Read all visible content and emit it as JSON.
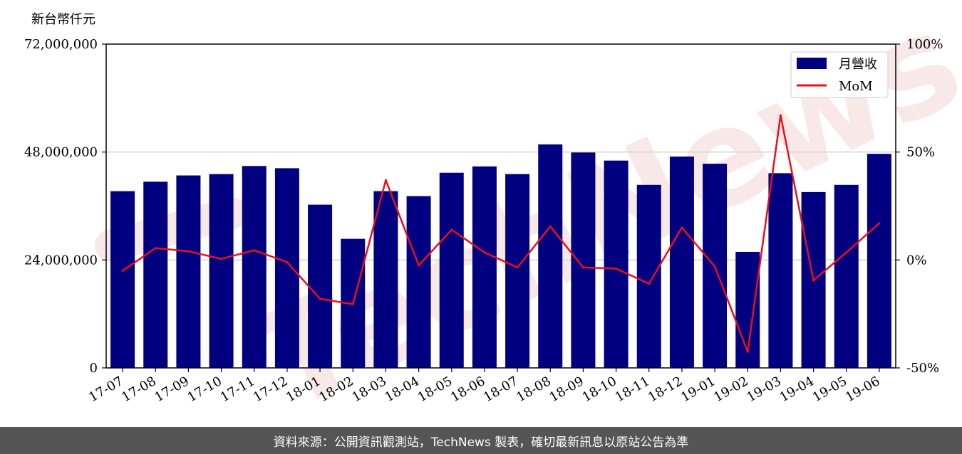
{
  "chart_data": {
    "type": "bar",
    "ylabel": "新台幣仟元",
    "categories": [
      "17-07",
      "17-08",
      "17-09",
      "17-10",
      "17-11",
      "17-12",
      "18-01",
      "18-02",
      "18-03",
      "18-04",
      "18-05",
      "18-06",
      "18-07",
      "18-08",
      "18-09",
      "18-10",
      "18-11",
      "18-12",
      "19-01",
      "19-02",
      "19-03",
      "19-04",
      "19-05",
      "19-06"
    ],
    "series": [
      {
        "name": "月營收",
        "axis": "left",
        "type": "bar",
        "color": "#000080",
        "values": [
          39300000,
          41400000,
          42800000,
          43100000,
          44900000,
          44400000,
          36300000,
          28700000,
          39300000,
          38200000,
          43400000,
          44800000,
          43100000,
          49700000,
          47900000,
          46100000,
          40700000,
          47000000,
          45400000,
          25800000,
          43300000,
          39100000,
          40700000,
          47600000
        ]
      },
      {
        "name": "MoM",
        "axis": "right",
        "type": "line",
        "color": "#e8101a",
        "values": [
          -5,
          5.5,
          4,
          0.5,
          4.5,
          -1,
          -18,
          -20.5,
          37,
          -2.5,
          14,
          3.5,
          -3.5,
          15.5,
          -3.5,
          -4,
          -11,
          15,
          -3,
          -42.5,
          67,
          -9.5,
          3.5,
          17
        ]
      }
    ],
    "ylim": [
      0,
      72000000
    ],
    "yticks": [
      "0",
      "24,000,000",
      "48,000,000",
      "72,000,000"
    ],
    "y2lim": [
      -50,
      100
    ],
    "y2ticks": [
      "-50%",
      "0%",
      "50%",
      "100%"
    ],
    "grid": "horizontal",
    "legend_position": "top-right"
  },
  "watermark": "TechNews",
  "footer": "資料來源：公開資訊觀測站，TechNews 製表，確切最新訊息以原站公告為準"
}
